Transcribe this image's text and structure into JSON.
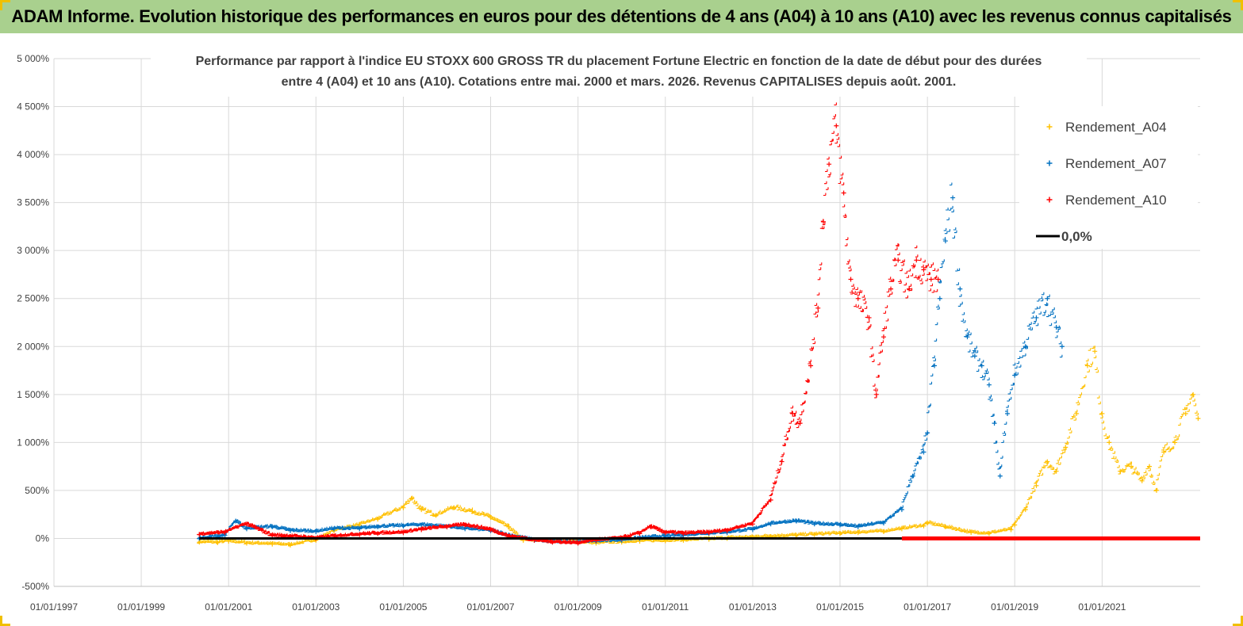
{
  "header": {
    "title": "ADAM Informe. Evolution historique des performances en euros pour des détentions de 4 ans (A04) à 10 ans (A10) avec les revenus connus capitalisés"
  },
  "chart_data": {
    "type": "scatter",
    "title_line1": "Performance par rapport à l'indice EU STOXX 600 GROSS TR  du placement Fortune Electric  en fonction de la date de début pour des durées",
    "title_line2": "entre 4 (A04) et 10 ans (A10). Cotations entre mai. 2000 et mars. 2026. Revenus CAPITALISES depuis août. 2001.",
    "xlabel": "",
    "ylabel": "",
    "x_ticks": [
      "01/01/1997",
      "01/01/1999",
      "01/01/2001",
      "01/01/2003",
      "01/01/2005",
      "01/01/2007",
      "01/01/2009",
      "01/01/2011",
      "01/01/2013",
      "01/01/2015",
      "01/01/2017",
      "01/01/2019",
      "01/01/2021"
    ],
    "y_ticks": [
      "-500%",
      "0%",
      "500%",
      "1 000%",
      "1 500%",
      "2 000%",
      "2 500%",
      "3 000%",
      "3 500%",
      "4 000%",
      "4 500%",
      "5 000%"
    ],
    "xlim": [
      "1997-01-01",
      "2023-04-01"
    ],
    "ylim": [
      -500,
      5000
    ],
    "grid": true,
    "legend_position": "top-right",
    "series": [
      {
        "name": "Rendement_A04",
        "color": "#ffc000",
        "marker": "plus",
        "points": [
          [
            "2000-05-01",
            -40
          ],
          [
            "2000-10-01",
            -45
          ],
          [
            "2001-01-01",
            -30
          ],
          [
            "2001-06-01",
            -50
          ],
          [
            "2002-01-01",
            -60
          ],
          [
            "2002-06-01",
            -70
          ],
          [
            "2003-01-01",
            -20
          ],
          [
            "2003-06-01",
            80
          ],
          [
            "2004-01-01",
            140
          ],
          [
            "2004-06-01",
            200
          ],
          [
            "2005-01-01",
            320
          ],
          [
            "2005-03-15",
            420
          ],
          [
            "2005-06-01",
            300
          ],
          [
            "2005-10-01",
            240
          ],
          [
            "2006-03-01",
            320
          ],
          [
            "2006-08-01",
            280
          ],
          [
            "2007-01-01",
            220
          ],
          [
            "2007-06-01",
            120
          ],
          [
            "2007-10-01",
            -20
          ],
          [
            "2008-06-01",
            -30
          ],
          [
            "2009-01-01",
            -40
          ],
          [
            "2009-06-01",
            -50
          ],
          [
            "2010-01-01",
            -40
          ],
          [
            "2010-06-01",
            -30
          ],
          [
            "2011-01-01",
            -25
          ],
          [
            "2011-06-01",
            -20
          ],
          [
            "2012-01-01",
            -10
          ],
          [
            "2012-06-01",
            0
          ],
          [
            "2013-01-01",
            10
          ],
          [
            "2013-06-01",
            20
          ],
          [
            "2014-01-01",
            30
          ],
          [
            "2014-06-01",
            40
          ],
          [
            "2015-01-01",
            50
          ],
          [
            "2015-06-01",
            60
          ],
          [
            "2016-01-01",
            70
          ],
          [
            "2016-06-01",
            100
          ],
          [
            "2016-12-01",
            130
          ],
          [
            "2017-01-01",
            160
          ],
          [
            "2017-06-01",
            120
          ],
          [
            "2018-01-01",
            60
          ],
          [
            "2018-06-01",
            50
          ],
          [
            "2018-12-01",
            90
          ],
          [
            "2019-01-01",
            140
          ],
          [
            "2019-04-01",
            300
          ],
          [
            "2019-07-01",
            550
          ],
          [
            "2019-10-01",
            800
          ],
          [
            "2019-12-15",
            700
          ],
          [
            "2020-03-01",
            950
          ],
          [
            "2020-06-01",
            1300
          ],
          [
            "2020-09-01",
            1800
          ],
          [
            "2020-11-01",
            1950
          ],
          [
            "2021-01-01",
            1300
          ],
          [
            "2021-03-01",
            1000
          ],
          [
            "2021-06-01",
            700
          ],
          [
            "2021-09-01",
            750
          ],
          [
            "2021-12-01",
            600
          ],
          [
            "2022-02-01",
            750
          ],
          [
            "2022-04-01",
            500
          ],
          [
            "2022-06-01",
            900
          ],
          [
            "2022-09-01",
            1000
          ],
          [
            "2022-12-01",
            1300
          ],
          [
            "2023-02-01",
            1500
          ],
          [
            "2023-03-15",
            1250
          ]
        ]
      },
      {
        "name": "Rendement_A07",
        "color": "#0070c0",
        "marker": "plus",
        "points": [
          [
            "2000-05-01",
            0
          ],
          [
            "2000-12-01",
            30
          ],
          [
            "2001-03-01",
            180
          ],
          [
            "2001-06-01",
            100
          ],
          [
            "2002-01-01",
            120
          ],
          [
            "2002-06-01",
            80
          ],
          [
            "2003-01-01",
            70
          ],
          [
            "2003-06-01",
            100
          ],
          [
            "2004-01-01",
            100
          ],
          [
            "2004-06-01",
            120
          ],
          [
            "2005-01-01",
            130
          ],
          [
            "2005-06-01",
            140
          ],
          [
            "2006-01-01",
            120
          ],
          [
            "2006-06-01",
            100
          ],
          [
            "2007-01-01",
            80
          ],
          [
            "2007-06-01",
            30
          ],
          [
            "2008-01-01",
            -20
          ],
          [
            "2008-06-01",
            -40
          ],
          [
            "2009-01-01",
            -40
          ],
          [
            "2009-06-01",
            -30
          ],
          [
            "2010-01-01",
            -20
          ],
          [
            "2010-06-01",
            0
          ],
          [
            "2011-01-01",
            20
          ],
          [
            "2011-06-01",
            30
          ],
          [
            "2012-01-01",
            50
          ],
          [
            "2012-06-01",
            60
          ],
          [
            "2013-01-01",
            90
          ],
          [
            "2013-06-01",
            150
          ],
          [
            "2014-01-01",
            180
          ],
          [
            "2014-06-01",
            150
          ],
          [
            "2015-01-01",
            140
          ],
          [
            "2015-06-01",
            120
          ],
          [
            "2016-01-01",
            160
          ],
          [
            "2016-06-01",
            300
          ],
          [
            "2016-09-01",
            650
          ],
          [
            "2016-12-01",
            900
          ],
          [
            "2017-01-01",
            1100
          ],
          [
            "2017-03-01",
            1800
          ],
          [
            "2017-04-15",
            2500
          ],
          [
            "2017-06-01",
            3100
          ],
          [
            "2017-08-01",
            3550
          ],
          [
            "2017-10-01",
            2600
          ],
          [
            "2017-12-01",
            2100
          ],
          [
            "2018-02-01",
            1900
          ],
          [
            "2018-04-01",
            1800
          ],
          [
            "2018-06-01",
            1600
          ],
          [
            "2018-07-15",
            1200
          ],
          [
            "2018-09-01",
            650
          ],
          [
            "2018-11-01",
            1300
          ],
          [
            "2019-01-01",
            1700
          ],
          [
            "2019-04-01",
            2000
          ],
          [
            "2019-07-01",
            2300
          ],
          [
            "2019-10-01",
            2500
          ],
          [
            "2019-12-15",
            2200
          ],
          [
            "2020-02-01",
            2000
          ]
        ]
      },
      {
        "name": "Rendement_A10",
        "color": "#ff0000",
        "marker": "plus",
        "points": [
          [
            "2000-05-01",
            40
          ],
          [
            "2000-12-01",
            60
          ],
          [
            "2001-06-01",
            150
          ],
          [
            "2002-01-01",
            30
          ],
          [
            "2002-06-01",
            20
          ],
          [
            "2003-01-01",
            0
          ],
          [
            "2003-06-01",
            20
          ],
          [
            "2004-01-01",
            40
          ],
          [
            "2004-06-01",
            50
          ],
          [
            "2005-01-01",
            60
          ],
          [
            "2005-06-01",
            90
          ],
          [
            "2006-01-01",
            120
          ],
          [
            "2006-06-01",
            140
          ],
          [
            "2007-01-01",
            90
          ],
          [
            "2007-06-01",
            20
          ],
          [
            "2008-01-01",
            -20
          ],
          [
            "2008-06-01",
            -40
          ],
          [
            "2009-01-01",
            -50
          ],
          [
            "2009-06-01",
            -20
          ],
          [
            "2010-01-01",
            0
          ],
          [
            "2010-06-01",
            50
          ],
          [
            "2010-09-01",
            120
          ],
          [
            "2011-01-01",
            60
          ],
          [
            "2011-06-01",
            50
          ],
          [
            "2012-01-01",
            60
          ],
          [
            "2012-06-01",
            80
          ],
          [
            "2013-01-01",
            150
          ],
          [
            "2013-06-01",
            400
          ],
          [
            "2013-09-01",
            800
          ],
          [
            "2013-12-01",
            1300
          ],
          [
            "2014-02-01",
            1200
          ],
          [
            "2014-05-01",
            1800
          ],
          [
            "2014-07-01",
            2400
          ],
          [
            "2014-08-15",
            3300
          ],
          [
            "2014-10-01",
            3900
          ],
          [
            "2014-12-01",
            4300
          ],
          [
            "2015-02-01",
            3600
          ],
          [
            "2015-04-01",
            2700
          ],
          [
            "2015-06-01",
            2500
          ],
          [
            "2015-09-01",
            2300
          ],
          [
            "2015-11-01",
            1500
          ],
          [
            "2016-01-01",
            2100
          ],
          [
            "2016-03-01",
            2600
          ],
          [
            "2016-05-01",
            2900
          ],
          [
            "2016-08-01",
            2600
          ],
          [
            "2016-10-01",
            2900
          ],
          [
            "2016-12-01",
            2800
          ],
          [
            "2017-02-01",
            2700
          ],
          [
            "2017-04-01",
            2700
          ]
        ]
      },
      {
        "name": "0,0%",
        "color": "#000000",
        "marker": "line",
        "points": [
          [
            "2000-05-01",
            0
          ],
          [
            "2016-06-01",
            0
          ]
        ]
      }
    ],
    "zero_tail": {
      "color": "#ff0000",
      "from": "2016-06-01",
      "to": "2023-04-01",
      "value": 0
    }
  }
}
